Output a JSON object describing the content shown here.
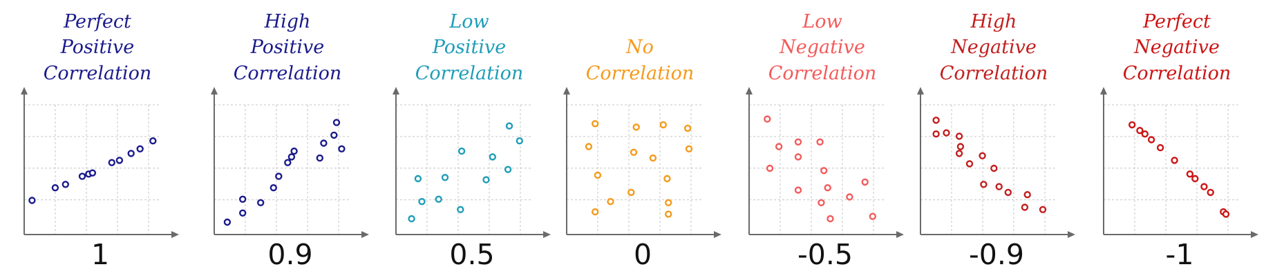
{
  "chart_data": [
    {
      "type": "scatter",
      "title": [
        "Perfect",
        "Positive",
        "Correlation"
      ],
      "value_label": "1",
      "color": "#1a1a8c",
      "xlim": [
        0,
        10
      ],
      "ylim": [
        0,
        10
      ],
      "grid": true,
      "points": [
        [
          0.4,
          2.5
        ],
        [
          2.2,
          3.6
        ],
        [
          3.0,
          3.9
        ],
        [
          4.3,
          4.6
        ],
        [
          4.8,
          4.8
        ],
        [
          5.1,
          4.9
        ],
        [
          6.6,
          5.8
        ],
        [
          7.2,
          6.0
        ],
        [
          8.1,
          6.6
        ],
        [
          8.8,
          7.0
        ],
        [
          9.8,
          7.7
        ]
      ]
    },
    {
      "type": "scatter",
      "title": [
        "High",
        "Positive",
        "Correlation"
      ],
      "value_label": "0.9",
      "color": "#1a1a8c",
      "xlim": [
        0,
        10
      ],
      "ylim": [
        0,
        10
      ],
      "grid": true,
      "points": [
        [
          0.8,
          0.6
        ],
        [
          2.0,
          1.4
        ],
        [
          2.0,
          2.6
        ],
        [
          3.4,
          2.3
        ],
        [
          4.4,
          3.6
        ],
        [
          4.8,
          4.6
        ],
        [
          5.5,
          5.8
        ],
        [
          5.8,
          6.3
        ],
        [
          6.0,
          6.8
        ],
        [
          8.0,
          6.2
        ],
        [
          8.3,
          7.5
        ],
        [
          9.1,
          8.2
        ],
        [
          9.3,
          9.3
        ],
        [
          9.7,
          7.0
        ]
      ]
    },
    {
      "type": "scatter",
      "title": [
        "Low",
        "Positive",
        "Correlation"
      ],
      "value_label": "0.5",
      "color": "#1f9db8",
      "xlim": [
        0,
        10
      ],
      "ylim": [
        0,
        10
      ],
      "grid": true,
      "points": [
        [
          1.0,
          0.9
        ],
        [
          1.5,
          4.4
        ],
        [
          1.8,
          2.4
        ],
        [
          3.1,
          2.6
        ],
        [
          3.6,
          4.5
        ],
        [
          4.8,
          1.7
        ],
        [
          4.9,
          6.8
        ],
        [
          6.8,
          4.3
        ],
        [
          7.3,
          6.3
        ],
        [
          8.5,
          5.2
        ],
        [
          8.6,
          9.0
        ],
        [
          9.4,
          7.7
        ]
      ]
    },
    {
      "type": "scatter",
      "title": [
        "No",
        "Correlation"
      ],
      "value_label": "0",
      "color": "#f59a1a",
      "xlim": [
        0,
        10
      ],
      "ylim": [
        0,
        10
      ],
      "grid": true,
      "points": [
        [
          1.5,
          7.2
        ],
        [
          2.0,
          9.2
        ],
        [
          2.2,
          4.7
        ],
        [
          2.0,
          1.5
        ],
        [
          3.2,
          2.4
        ],
        [
          5.0,
          6.7
        ],
        [
          5.2,
          8.9
        ],
        [
          4.8,
          3.2
        ],
        [
          6.5,
          6.2
        ],
        [
          7.3,
          9.1
        ],
        [
          7.6,
          4.4
        ],
        [
          7.7,
          2.3
        ],
        [
          7.7,
          1.3
        ],
        [
          9.2,
          8.8
        ],
        [
          9.3,
          7.0
        ]
      ]
    },
    {
      "type": "scatter",
      "title": [
        "Low",
        "Negative",
        "Correlation"
      ],
      "value_label": "-0.5",
      "color": "#f45a5a",
      "xlim": [
        0,
        10
      ],
      "ylim": [
        0,
        10
      ],
      "grid": true,
      "points": [
        [
          1.2,
          9.6
        ],
        [
          1.4,
          5.3
        ],
        [
          2.1,
          7.2
        ],
        [
          3.6,
          7.6
        ],
        [
          3.6,
          6.3
        ],
        [
          3.6,
          3.4
        ],
        [
          5.3,
          7.6
        ],
        [
          5.6,
          5.1
        ],
        [
          5.9,
          3.6
        ],
        [
          5.4,
          2.3
        ],
        [
          6.1,
          0.9
        ],
        [
          7.6,
          2.8
        ],
        [
          8.8,
          4.1
        ],
        [
          9.4,
          1.1
        ]
      ]
    },
    {
      "type": "scatter",
      "title": [
        "High",
        "Negative",
        "Correlation"
      ],
      "value_label": "-0.9",
      "color": "#c21e1e",
      "xlim": [
        0,
        10
      ],
      "ylim": [
        0,
        10
      ],
      "grid": true,
      "points": [
        [
          1.0,
          9.5
        ],
        [
          1.0,
          8.3
        ],
        [
          1.8,
          8.4
        ],
        [
          2.8,
          8.1
        ],
        [
          2.9,
          7.2
        ],
        [
          2.8,
          6.6
        ],
        [
          3.6,
          5.7
        ],
        [
          4.6,
          6.4
        ],
        [
          5.5,
          5.3
        ],
        [
          4.7,
          3.9
        ],
        [
          5.9,
          3.7
        ],
        [
          6.6,
          3.2
        ],
        [
          7.9,
          1.9
        ],
        [
          8.1,
          3.0
        ],
        [
          9.3,
          1.7
        ]
      ]
    },
    {
      "type": "scatter",
      "title": [
        "Perfect",
        "Negative",
        "Correlation"
      ],
      "value_label": "-1",
      "color": "#cc1414",
      "xlim": [
        0,
        10
      ],
      "ylim": [
        0,
        10
      ],
      "grid": true,
      "points": [
        [
          2.0,
          9.1
        ],
        [
          2.6,
          8.6
        ],
        [
          3.0,
          8.3
        ],
        [
          3.5,
          7.8
        ],
        [
          4.2,
          7.1
        ],
        [
          5.3,
          6.0
        ],
        [
          6.5,
          4.8
        ],
        [
          6.9,
          4.4
        ],
        [
          7.6,
          3.7
        ],
        [
          8.1,
          3.2
        ],
        [
          9.1,
          1.5
        ],
        [
          9.3,
          1.3
        ]
      ]
    }
  ]
}
